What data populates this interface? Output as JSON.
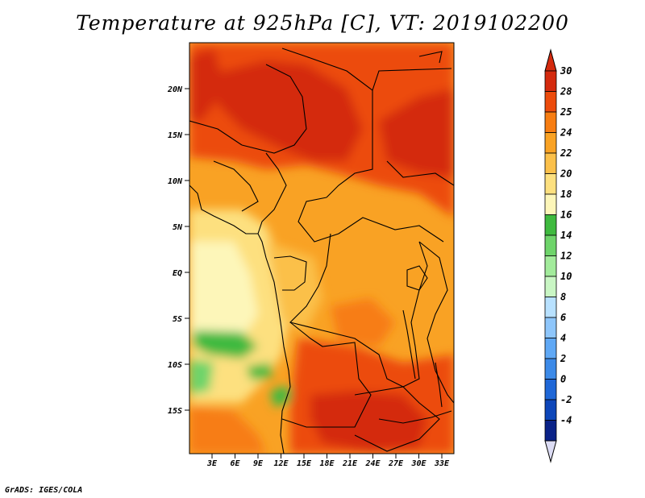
{
  "title": "Temperature at 925hPa [C], VT: 2019102200",
  "credit": "GrADS: IGES/COLA",
  "map": {
    "lat_labels": [
      "20N",
      "15N",
      "10N",
      "5N",
      "EQ",
      "5S",
      "10S",
      "15S"
    ],
    "lon_labels": [
      "3E",
      "6E",
      "9E",
      "12E",
      "15E",
      "18E",
      "21E",
      "24E",
      "27E",
      "30E",
      "33E"
    ]
  },
  "colorbar": {
    "labels": [
      "30",
      "28",
      "25",
      "24",
      "22",
      "20",
      "18",
      "16",
      "14",
      "12",
      "10",
      "8",
      "6",
      "4",
      "2",
      "0",
      "-2",
      "-4"
    ],
    "colors": [
      "#d42a0e",
      "#ec4b0c",
      "#f77d12",
      "#f9a224",
      "#fbc04a",
      "#fde07f",
      "#fdf6b9",
      "#3fba3f",
      "#6ed46a",
      "#a2eb9b",
      "#c9f6c4",
      "#b8e1ff",
      "#8ec6fb",
      "#5fa8f5",
      "#3c8ae8",
      "#1f67d7",
      "#0d46b9",
      "#0a2288",
      "#dcdcf4"
    ],
    "top_arrow_color": "#d42a0e",
    "bottom_arrow_color": "#dcdcf4"
  }
}
